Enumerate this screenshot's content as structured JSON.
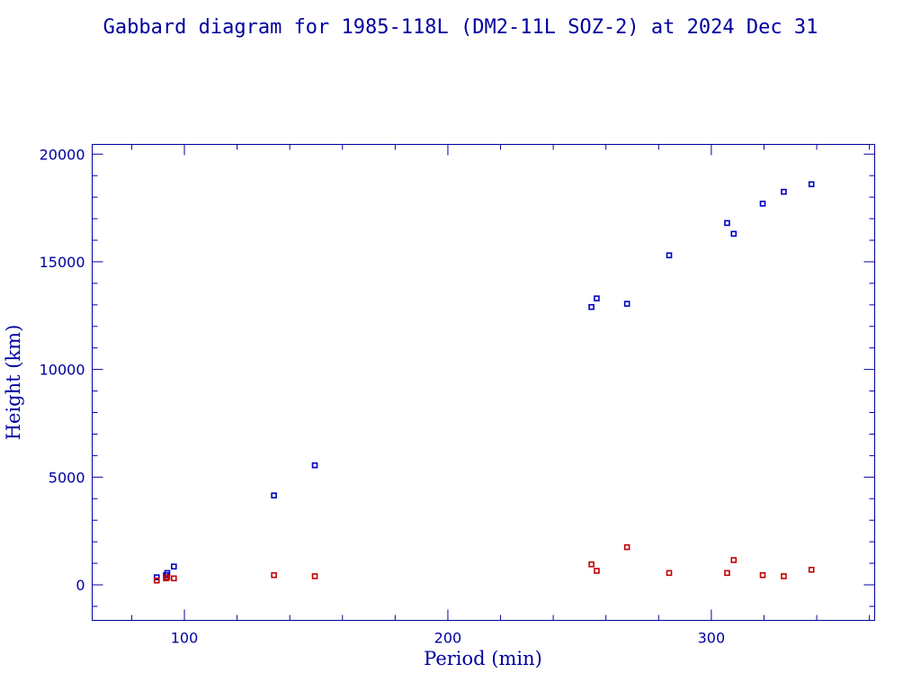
{
  "chart_data": {
    "type": "scatter",
    "title": "Gabbard diagram for 1985-118L (DM2-11L SOZ-2) at 2024 Dec 31",
    "xlabel": "Period (min)",
    "ylabel": "Height (km)",
    "xlim": [
      65,
      362
    ],
    "ylim": [
      -1650,
      20450
    ],
    "x_major_ticks": [
      100,
      200,
      300
    ],
    "x_minor_step": 20,
    "y_major_ticks": [
      0,
      5000,
      10000,
      15000,
      20000
    ],
    "y_minor_step": 1000,
    "grid": false,
    "series": [
      {
        "color": "#0000c0",
        "points": [
          [
            89.5,
            350
          ],
          [
            93.0,
            450
          ],
          [
            93.5,
            550
          ],
          [
            96.0,
            850
          ],
          [
            134.0,
            4150
          ],
          [
            149.5,
            5550
          ],
          [
            254.5,
            12900
          ],
          [
            256.5,
            13300
          ],
          [
            268.0,
            13050
          ],
          [
            284.0,
            15300
          ],
          [
            306.0,
            16800
          ],
          [
            308.5,
            16300
          ],
          [
            319.5,
            17700
          ],
          [
            327.5,
            18250
          ],
          [
            338.0,
            18600
          ]
        ]
      },
      {
        "color": "#c00000",
        "points": [
          [
            89.5,
            200
          ],
          [
            93.0,
            300
          ],
          [
            93.5,
            350
          ],
          [
            96.0,
            300
          ],
          [
            134.0,
            450
          ],
          [
            149.5,
            400
          ],
          [
            254.5,
            950
          ],
          [
            256.5,
            650
          ],
          [
            268.0,
            1750
          ],
          [
            284.0,
            550
          ],
          [
            306.0,
            550
          ],
          [
            308.5,
            1150
          ],
          [
            319.5,
            450
          ],
          [
            327.5,
            400
          ],
          [
            338.0,
            700
          ]
        ]
      }
    ]
  }
}
